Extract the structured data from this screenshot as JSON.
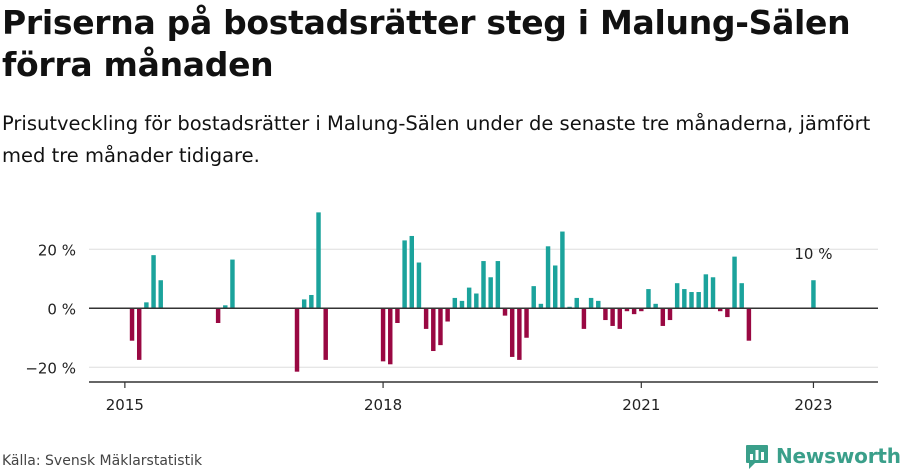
{
  "title": "Priserna på bostadsrätter steg i Malung-Sälen förra månaden",
  "subtitle": "Prisutveckling för bostadsrätter i Malung-Sälen under de senaste tre månaderna, jämfört med tre månader tidigare.",
  "source": "Källa: Svensk Mäklarstatistik",
  "brand": "Newsworthy",
  "colors": {
    "positive": "#1ba39c",
    "negative": "#990842",
    "grid": "#dddddd",
    "axis": "#333333",
    "brand": "#3a9f8a"
  },
  "chart_data": {
    "type": "bar",
    "xlabel": "",
    "ylabel": "",
    "ylim": [
      -25,
      35
    ],
    "xlim": [
      "2014-08",
      "2023-10"
    ],
    "y_ticks": [
      -20,
      0,
      20
    ],
    "y_tick_labels": [
      "−20 %",
      "0 %",
      "20 %"
    ],
    "x_ticks": [
      "2015-01",
      "2018-01",
      "2021-01",
      "2023-01"
    ],
    "x_tick_labels": [
      "2015",
      "2018",
      "2021",
      "2023"
    ],
    "annotation": {
      "date": "2023-01",
      "label": "10 %"
    },
    "grid": true,
    "series": [
      {
        "x": [
          "2015-02",
          "2015-03",
          "2015-04",
          "2015-05",
          "2015-06",
          "2016-02",
          "2016-03",
          "2016-04",
          "2017-01",
          "2017-02",
          "2017-03",
          "2017-04",
          "2017-05",
          "2018-01",
          "2018-02",
          "2018-03",
          "2018-04",
          "2018-05",
          "2018-06",
          "2018-07",
          "2018-08",
          "2018-09",
          "2018-10",
          "2018-11",
          "2018-12",
          "2019-01",
          "2019-02",
          "2019-03",
          "2019-04",
          "2019-05",
          "2019-06",
          "2019-07",
          "2019-08",
          "2019-09",
          "2019-10",
          "2019-11",
          "2019-12",
          "2020-01",
          "2020-02",
          "2020-03",
          "2020-04",
          "2020-05",
          "2020-06",
          "2020-07",
          "2020-08",
          "2020-09",
          "2020-10",
          "2020-11",
          "2020-12",
          "2021-01",
          "2021-02",
          "2021-03",
          "2021-04",
          "2021-05",
          "2021-06",
          "2021-07",
          "2021-08",
          "2021-09",
          "2021-10",
          "2021-11",
          "2021-12",
          "2022-01",
          "2022-02",
          "2022-03",
          "2022-04",
          "2022-05",
          "2023-01"
        ],
        "values": [
          -11,
          -17.5,
          2,
          18,
          9.5,
          -5,
          1,
          16.5,
          -21.5,
          3,
          4.5,
          32.5,
          -17.5,
          -18,
          -19,
          -5,
          23,
          24.5,
          15.5,
          -7,
          -14.5,
          -12.5,
          -4.5,
          3.5,
          2.5,
          7,
          5,
          16,
          10.5,
          16,
          -2.5,
          -16.5,
          -17.5,
          -10,
          7.5,
          1.5,
          21,
          14.5,
          26,
          0.5,
          3.5,
          -7,
          3.5,
          2.5,
          -4,
          -6,
          -7,
          -1,
          -2,
          -1,
          6.5,
          1.5,
          -6,
          -4,
          8.5,
          6.5,
          5.5,
          5.5,
          11.5,
          10.5,
          -1,
          -3,
          17.5,
          8.5,
          -11,
          0,
          9.5
        ]
      }
    ]
  }
}
